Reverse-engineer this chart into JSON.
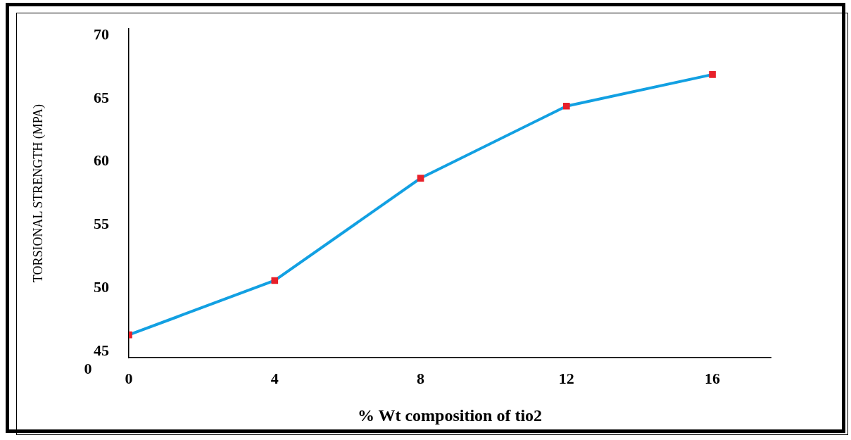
{
  "chart_data": {
    "type": "line",
    "xlabel": "% Wt composition of tio2",
    "ylabel": "TORSIONAL STRENGTH (MPA)",
    "x": [
      0,
      4,
      8,
      12,
      16
    ],
    "series": [
      {
        "color": "#12a0e2",
        "colors": [
          "#e8202a",
          "#e8202a",
          "#e8202a",
          "#e8202a",
          "#e8202a"
        ],
        "values": [
          46.3,
          50.6,
          58.7,
          64.4,
          66.9
        ]
      }
    ],
    "xlim": [
      0,
      17.6
    ],
    "xticks": [
      0,
      4,
      8,
      12,
      16
    ],
    "ylim": [
      44.5,
      70.5
    ],
    "yticks": [
      45,
      50,
      55,
      60,
      65,
      70
    ],
    "marker": "square",
    "grid": false,
    "legend": false,
    "annotations": [
      "0"
    ]
  }
}
